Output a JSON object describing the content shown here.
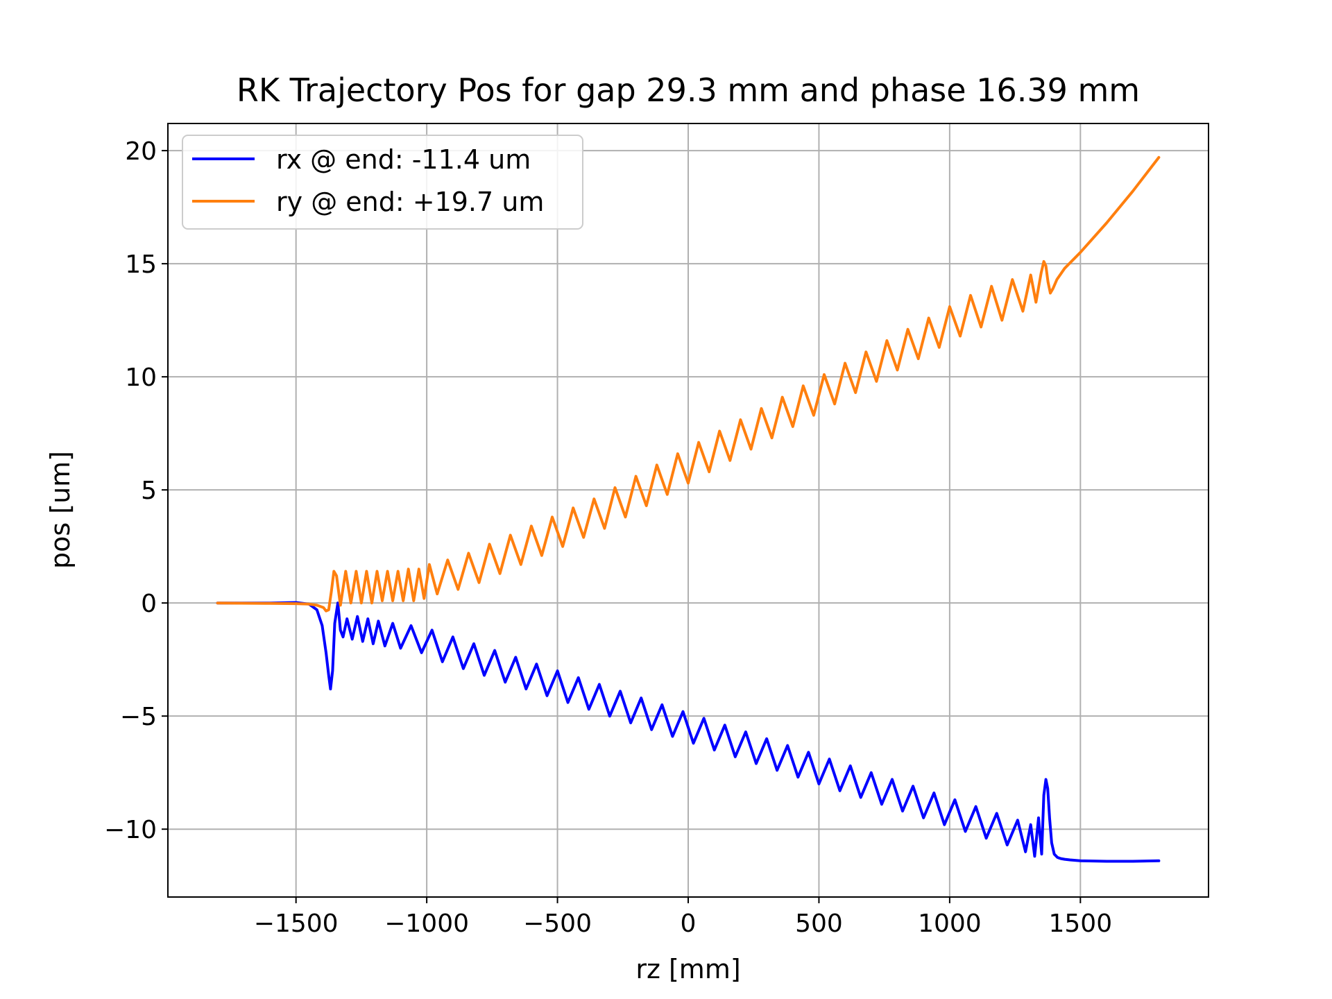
{
  "chart_data": {
    "type": "line",
    "title": "RK Trajectory Pos for gap 29.3 mm and phase 16.39 mm",
    "xlabel": "rz [mm]",
    "ylabel": "pos [um]",
    "xlim": [
      -1990,
      1990
    ],
    "ylim": [
      -13,
      21.2
    ],
    "xticks": [
      -1500,
      -1000,
      -500,
      0,
      500,
      1000,
      1500
    ],
    "xtick_labels": [
      "−1500",
      "−1000",
      "−500",
      "0",
      "500",
      "1000",
      "1500"
    ],
    "yticks": [
      -10,
      -5,
      0,
      5,
      10,
      15,
      20
    ],
    "ytick_labels": [
      "−10",
      "−5",
      "0",
      "5",
      "10",
      "15",
      "20"
    ],
    "grid": true,
    "legend_position": "top-left",
    "series": [
      {
        "name": "rx @ end: -11.4 um",
        "color": "#0000ff",
        "x": [
          -1800,
          -1600,
          -1500,
          -1450,
          -1420,
          -1400,
          -1385,
          -1375,
          -1368,
          -1360,
          -1352,
          -1340,
          -1330,
          -1320,
          -1305,
          -1285,
          -1265,
          -1245,
          -1225,
          -1205,
          -1185,
          -1160,
          -1130,
          -1100,
          -1060,
          -1020,
          -980,
          -940,
          -900,
          -860,
          -820,
          -780,
          -740,
          -700,
          -660,
          -620,
          -580,
          -540,
          -500,
          -460,
          -420,
          -380,
          -340,
          -300,
          -260,
          -220,
          -180,
          -140,
          -100,
          -60,
          -20,
          20,
          60,
          100,
          140,
          180,
          220,
          260,
          300,
          340,
          380,
          420,
          460,
          500,
          540,
          580,
          620,
          660,
          700,
          740,
          780,
          820,
          860,
          900,
          940,
          980,
          1020,
          1060,
          1100,
          1140,
          1180,
          1220,
          1260,
          1290,
          1310,
          1325,
          1340,
          1352,
          1360,
          1368,
          1375,
          1382,
          1390,
          1400,
          1412,
          1425,
          1440,
          1460,
          1500,
          1600,
          1700,
          1800
        ],
        "y": [
          0,
          0,
          0.02,
          -0.05,
          -0.3,
          -1.0,
          -2.2,
          -3.2,
          -3.8,
          -3.0,
          -0.9,
          0.0,
          -1.2,
          -1.5,
          -0.7,
          -1.6,
          -0.6,
          -1.7,
          -0.7,
          -1.8,
          -0.8,
          -1.9,
          -0.9,
          -2.0,
          -1.0,
          -2.2,
          -1.2,
          -2.6,
          -1.5,
          -2.9,
          -1.8,
          -3.2,
          -2.1,
          -3.5,
          -2.4,
          -3.8,
          -2.7,
          -4.1,
          -3.0,
          -4.4,
          -3.3,
          -4.7,
          -3.6,
          -5.0,
          -3.9,
          -5.3,
          -4.2,
          -5.6,
          -4.5,
          -5.9,
          -4.8,
          -6.2,
          -5.1,
          -6.5,
          -5.4,
          -6.8,
          -5.7,
          -7.1,
          -6.0,
          -7.4,
          -6.3,
          -7.7,
          -6.6,
          -8.0,
          -6.9,
          -8.3,
          -7.2,
          -8.6,
          -7.5,
          -8.9,
          -7.8,
          -9.2,
          -8.1,
          -9.5,
          -8.4,
          -9.8,
          -8.7,
          -10.1,
          -9.0,
          -10.4,
          -9.3,
          -10.7,
          -9.6,
          -11.0,
          -9.8,
          -11.2,
          -9.5,
          -11.1,
          -8.5,
          -7.8,
          -8.2,
          -9.5,
          -10.6,
          -11.1,
          -11.25,
          -11.3,
          -11.33,
          -11.36,
          -11.4,
          -11.42,
          -11.42,
          -11.4
        ]
      },
      {
        "name": "ry @ end: +19.7 um",
        "color": "#ff7f0e",
        "x": [
          -1800,
          -1600,
          -1500,
          -1450,
          -1420,
          -1395,
          -1385,
          -1375,
          -1365,
          -1355,
          -1345,
          -1330,
          -1310,
          -1290,
          -1270,
          -1250,
          -1230,
          -1210,
          -1190,
          -1170,
          -1150,
          -1130,
          -1110,
          -1090,
          -1070,
          -1050,
          -1030,
          -1010,
          -990,
          -960,
          -920,
          -880,
          -840,
          -800,
          -760,
          -720,
          -680,
          -640,
          -600,
          -560,
          -520,
          -480,
          -440,
          -400,
          -360,
          -320,
          -280,
          -240,
          -200,
          -160,
          -120,
          -80,
          -40,
          0,
          40,
          80,
          120,
          160,
          200,
          240,
          280,
          320,
          360,
          400,
          440,
          480,
          520,
          560,
          600,
          640,
          680,
          720,
          760,
          800,
          840,
          880,
          920,
          960,
          1000,
          1040,
          1080,
          1120,
          1160,
          1200,
          1240,
          1280,
          1310,
          1330,
          1350,
          1360,
          1368,
          1376,
          1385,
          1395,
          1410,
          1440,
          1500,
          1600,
          1700,
          1800
        ],
        "y": [
          0,
          -0.02,
          -0.03,
          -0.05,
          -0.1,
          -0.2,
          -0.35,
          -0.3,
          0.5,
          1.4,
          1.2,
          -0.1,
          1.4,
          0.0,
          1.4,
          0.0,
          1.4,
          0.0,
          1.4,
          0.1,
          1.4,
          0.1,
          1.4,
          0.1,
          1.5,
          0.1,
          1.5,
          0.2,
          1.7,
          0.4,
          1.9,
          0.6,
          2.2,
          0.9,
          2.6,
          1.3,
          3.0,
          1.7,
          3.4,
          2.1,
          3.8,
          2.5,
          4.2,
          2.9,
          4.6,
          3.3,
          5.1,
          3.8,
          5.6,
          4.3,
          6.1,
          4.8,
          6.6,
          5.3,
          7.1,
          5.8,
          7.6,
          6.3,
          8.1,
          6.8,
          8.6,
          7.3,
          9.1,
          7.8,
          9.6,
          8.3,
          10.1,
          8.8,
          10.6,
          9.3,
          11.1,
          9.8,
          11.6,
          10.3,
          12.1,
          10.8,
          12.6,
          11.3,
          13.1,
          11.8,
          13.6,
          12.2,
          14.0,
          12.5,
          14.3,
          12.9,
          14.5,
          13.3,
          14.6,
          15.1,
          14.9,
          14.2,
          13.7,
          13.9,
          14.3,
          14.8,
          15.5,
          16.8,
          18.2,
          19.7
        ]
      }
    ]
  }
}
